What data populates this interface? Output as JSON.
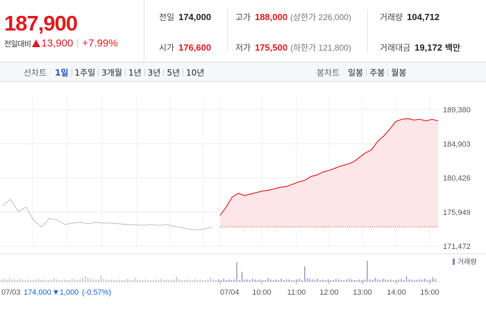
{
  "price": {
    "current": "187,900",
    "change_label": "전일대비",
    "change": "13,900",
    "change_pct": "+7.99%"
  },
  "stats": {
    "prev_close": {
      "label": "전일",
      "value": "174,000"
    },
    "high": {
      "label": "고가",
      "value": "188,000",
      "limit_label": "(상한가 226,000)"
    },
    "volume": {
      "label": "거래량",
      "value": "104,712"
    },
    "open": {
      "label": "시가",
      "value": "176,600"
    },
    "low": {
      "label": "저가",
      "value": "175,500",
      "limit_label": "(하한가 121,800)"
    },
    "trade_value": {
      "label": "거래대금",
      "value": "19,172",
      "unit": "백만"
    }
  },
  "line_tabs": {
    "title": "선차트",
    "items": [
      "1일",
      "1주일",
      "3개월",
      "1년",
      "3년",
      "5년",
      "10년"
    ],
    "active": "1일"
  },
  "candle_tabs": {
    "title": "봉차트",
    "items": [
      "일봉",
      "주봉",
      "월봉"
    ]
  },
  "prev_day_info": {
    "date": "07/03",
    "close": "174,000",
    "change": "▼1,000",
    "change_pct": "(-0.57%)"
  },
  "colors": {
    "up": "#e0191f",
    "down": "#1160d4",
    "fill": "#fde6e7",
    "prev_line": "#bcbcbc",
    "volume": "#8a7cc0"
  },
  "chart_data": {
    "type": "line",
    "y_ticks": [
      "189,380",
      "184,903",
      "180,426",
      "175,949",
      "171,472"
    ],
    "ylim": [
      171472,
      189380
    ],
    "baseline": 174000,
    "x_ticks": [
      "07/04",
      "10:00",
      "11:00",
      "12:00",
      "13:00",
      "14:00",
      "15:00"
    ],
    "volume_legend": "거래량",
    "prev_day_series": [
      176800,
      177600,
      176000,
      176600,
      174800,
      174000,
      175100,
      174900,
      174300,
      174500,
      174600,
      174400,
      174600,
      174500,
      174500,
      174400,
      174300,
      174300,
      174200,
      174300,
      174200,
      174300,
      174100,
      173900,
      173700,
      173600,
      173700,
      174000
    ],
    "today_series": [
      175500,
      176600,
      177900,
      178400,
      178100,
      178300,
      178500,
      178700,
      178800,
      179000,
      179200,
      179300,
      179600,
      179900,
      180100,
      180600,
      180800,
      181200,
      181400,
      181700,
      182000,
      182200,
      182500,
      183100,
      183700,
      184100,
      185200,
      185900,
      186800,
      187800,
      188100,
      188200,
      188000,
      188100,
      187900,
      188100,
      187900
    ]
  }
}
